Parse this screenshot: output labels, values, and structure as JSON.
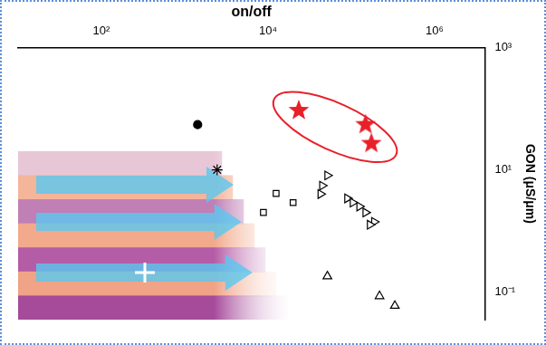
{
  "chart_data": {
    "type": "scatter",
    "x_label": "on/off",
    "y_label": "GON (μS/μm)",
    "log": true,
    "grid": false,
    "xlim": [
      10,
      4000000
    ],
    "xticks": [
      {
        "value": 100,
        "label": "10²"
      },
      {
        "value": 10000,
        "label": "10⁴"
      },
      {
        "value": 1000000,
        "label": "10⁶"
      }
    ],
    "ylim": [
      0.035,
      1000
    ],
    "yticks": [
      {
        "value": 0.1,
        "label": "10⁻¹"
      },
      {
        "value": 10,
        "label": "10¹"
      },
      {
        "value": 1000,
        "label": "10³"
      }
    ],
    "series": [
      {
        "marker": "star",
        "color": "#e8202a",
        "x": [
          23400,
          148000,
          174000
        ],
        "values": [
          94,
          55,
          27
        ]
      },
      {
        "marker": "circle",
        "color": "#000000",
        "x": [
          1430
        ],
        "values": [
          55
        ]
      },
      {
        "marker": "asterisk",
        "color": "#000000",
        "x": [
          2450
        ],
        "values": [
          10
        ]
      },
      {
        "marker": "square",
        "color": "#000000",
        "x": [
          12500,
          20000,
          8800
        ],
        "values": [
          4.1,
          2.9,
          2.0
        ]
      },
      {
        "marker": "triangle_right",
        "color": "#000000",
        "x": [
          51600,
          44700,
          42700,
          89400,
          104000,
          125000,
          148000,
          188000,
          167000
        ],
        "values": [
          8.1,
          5.5,
          4.0,
          3.4,
          2.9,
          2.5,
          2.0,
          1.4,
          1.26
        ]
      },
      {
        "marker": "triangle",
        "color": "#000000",
        "x": [
          51600,
          218000,
          333000
        ],
        "values": [
          0.18,
          0.085,
          0.059
        ]
      }
    ]
  }
}
